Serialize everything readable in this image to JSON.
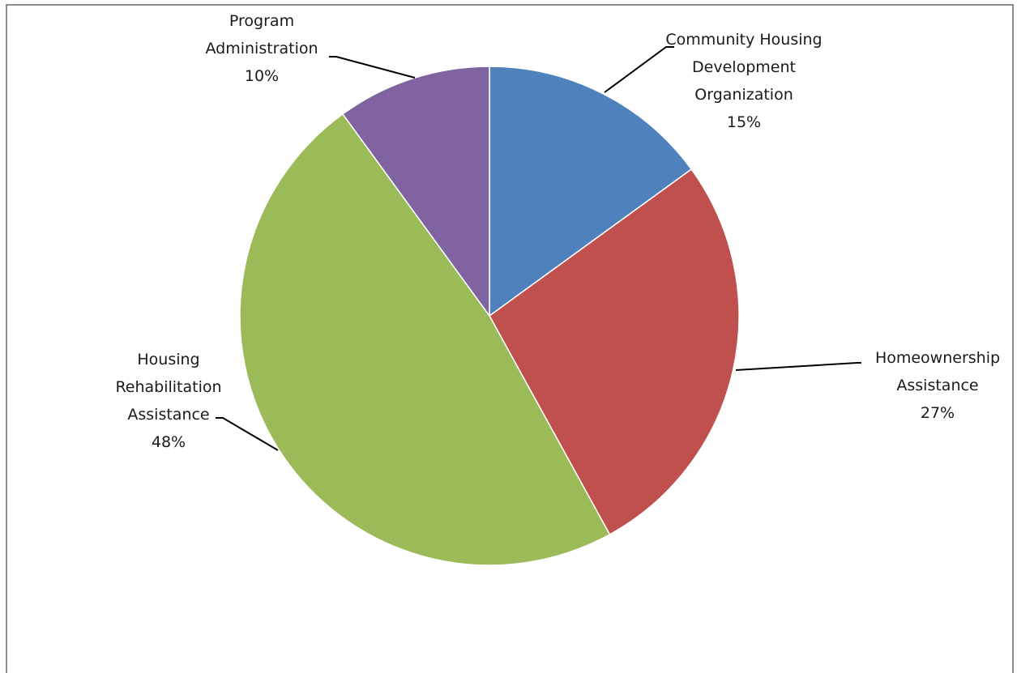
{
  "chart_data": {
    "type": "pie",
    "title": "",
    "slices": [
      {
        "name": "Community Housing Development Organization",
        "label_lines": [
          "Community Housing",
          "Development",
          "Organization"
        ],
        "value": 15,
        "percent_label": "15%",
        "color": "#4f81bd"
      },
      {
        "name": "Homeownership Assistance",
        "label_lines": [
          "Homeownership",
          "Assistance"
        ],
        "value": 27,
        "percent_label": "27%",
        "color": "#c0504d"
      },
      {
        "name": "Housing Rehabilitation Assistance",
        "label_lines": [
          "Housing",
          "Rehabilitation",
          "Assistance"
        ],
        "value": 48,
        "percent_label": "48%",
        "color": "#9bbb59"
      },
      {
        "name": "Program Administration",
        "label_lines": [
          "Program",
          "Administration"
        ],
        "value": 10,
        "percent_label": "10%",
        "color": "#8064a2"
      }
    ],
    "start": "12 o'clock",
    "direction": "clockwise",
    "legend": "none",
    "data_labels": "outside with leader lines"
  }
}
